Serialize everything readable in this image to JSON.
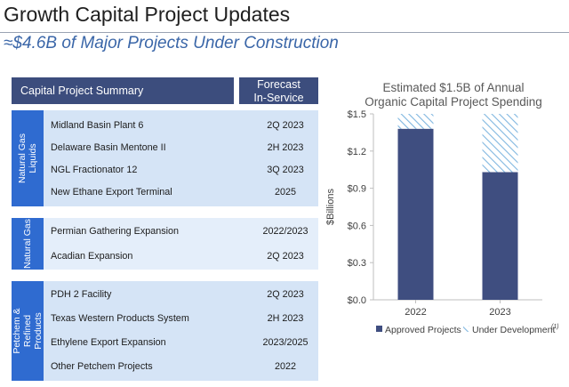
{
  "slide": {
    "title": "Growth Capital Project Updates",
    "subtitle": "≈$4.6B of Major Projects Under Construction"
  },
  "table": {
    "header_left": "Capital Project Summary",
    "header_right_line1": "Forecast",
    "header_right_line2": "In-Service",
    "groups": [
      {
        "label_line1": "Natural Gas",
        "label_line2": "Liquids",
        "rows": [
          {
            "name": "Midland Basin Plant 6",
            "date": "2Q 2023"
          },
          {
            "name": "Delaware Basin Mentone II",
            "date": "2H 2023"
          },
          {
            "name": "NGL Fractionator 12",
            "date": "3Q 2023"
          },
          {
            "name": "New Ethane Export Terminal",
            "date": "2025"
          }
        ]
      },
      {
        "label_line1": "Natural Gas",
        "label_line2": "",
        "rows": [
          {
            "name": "Permian Gathering Expansion",
            "date": "2022/2023"
          },
          {
            "name": "Acadian Expansion",
            "date": "2Q 2023"
          }
        ]
      },
      {
        "label_line1": "Petchem &",
        "label_line2": "Refined",
        "label_line3": "Products",
        "rows": [
          {
            "name": "PDH 2 Facility",
            "date": "2Q 2023"
          },
          {
            "name": "Texas Western Products System",
            "date": "2H 2023"
          },
          {
            "name": "Ethylene Export Expansion",
            "date": "2023/2025"
          },
          {
            "name": "Other Petchem Projects",
            "date": "2022"
          }
        ]
      }
    ]
  },
  "chart_data": {
    "type": "bar",
    "stacked": true,
    "title_line1": "Estimated $1.5B of Annual",
    "title_line2": "Organic Capital Project Spending",
    "ylabel": "$Billions",
    "ylim": [
      0,
      1.5
    ],
    "yticks": [
      "$0.0",
      "$0.3",
      "$0.6",
      "$0.9",
      "$1.2",
      "$1.5"
    ],
    "ytick_values": [
      0,
      0.3,
      0.6,
      0.9,
      1.2,
      1.5
    ],
    "categories": [
      "2022",
      "2023"
    ],
    "series": [
      {
        "name": "Approved Projects",
        "values": [
          1.38,
          1.03
        ],
        "color": "#3f4e80"
      },
      {
        "name": "Under Development",
        "values": [
          0.12,
          0.47
        ],
        "color": "#7fb6e0"
      }
    ],
    "legend_footnote": "(1)",
    "legend_position": "bottom",
    "grid": false
  }
}
